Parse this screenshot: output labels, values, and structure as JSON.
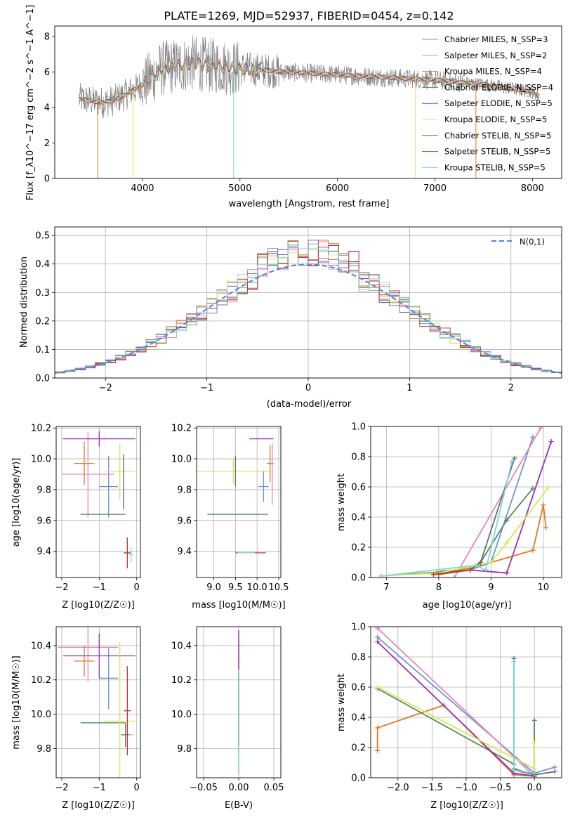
{
  "colors": [
    "#6f93d8",
    "#e884b6",
    "#e07a22",
    "#5a8a5c",
    "#9a30b8",
    "#d4e85a",
    "#6a6a6a",
    "#c4302b",
    "#7ed8d8"
  ],
  "chart_data": [
    {
      "id": "spectrum",
      "type": "line",
      "title": "PLATE=1269, MJD=52937, FIBERID=0454, z=0.142",
      "xlabel": "wavelength [Angstrom, rest frame]",
      "ylabel": "Flux [f_λ10^−17 erg cm^−2 s^−1 A^−1]",
      "xlim": [
        3100,
        8300
      ],
      "ylim": [
        0,
        8.6
      ],
      "xticks": [
        4000,
        5000,
        6000,
        7000,
        8000
      ],
      "yticks": [
        0,
        2,
        4,
        6,
        8
      ],
      "legend_position": "upper-right",
      "series": [
        {
          "name": "Chabrier MILES, N_SSP=3"
        },
        {
          "name": "Salpeter MILES, N_SSP=2"
        },
        {
          "name": "Kroupa MILES, N_SSP=4"
        },
        {
          "name": "Chabrier ELODIE, N_SSP=4"
        },
        {
          "name": "Salpeter ELODIE, N_SSP=5"
        },
        {
          "name": "Kroupa ELODIE, N_SSP=5"
        },
        {
          "name": "Chabrier STELIB, N_SSP=5"
        },
        {
          "name": "Salpeter STELIB, N_SSP=5"
        },
        {
          "name": "Kroupa STELIB, N_SSP=5"
        }
      ],
      "continuum": [
        [
          3350,
          4.5
        ],
        [
          3500,
          4.35
        ],
        [
          3600,
          4.3
        ],
        [
          3700,
          4.4
        ],
        [
          3850,
          4.8
        ],
        [
          4000,
          5.3
        ],
        [
          4200,
          6.2
        ],
        [
          4500,
          6.5
        ],
        [
          5000,
          6.2
        ],
        [
          5500,
          6.0
        ],
        [
          6000,
          5.85
        ],
        [
          6500,
          5.7
        ],
        [
          7000,
          5.55
        ],
        [
          7500,
          5.3
        ],
        [
          8000,
          4.9
        ],
        [
          8070,
          4.6
        ]
      ]
    },
    {
      "id": "residuals",
      "type": "histogram",
      "xlabel": "(data-model)/error",
      "ylabel": "Normed distribution",
      "xlim": [
        -2.5,
        2.5
      ],
      "ylim": [
        0,
        0.53
      ],
      "xticks": [
        -2,
        -1,
        0,
        1,
        2
      ],
      "yticks": [
        0.0,
        0.1,
        0.2,
        0.3,
        0.4,
        0.5
      ],
      "legend_label": "N(0,1)",
      "bin_width": 0.1
    },
    {
      "id": "age-vs-Z",
      "type": "scatter",
      "xlabel": "Z [log10(Z/Z☉)]",
      "ylabel": "age  [log10(age/yr)]",
      "xlim": [
        -2.15,
        0.1
      ],
      "ylim": [
        9.23,
        10.21
      ],
      "xticks": [
        -2,
        -1,
        0
      ],
      "yticks": [
        9.4,
        9.6,
        9.8,
        10.0,
        10.2
      ],
      "points": [
        {
          "x": -0.75,
          "y": 9.82,
          "xerr": 0.25,
          "yerr": 0.2
        },
        {
          "x": -1.3,
          "y": 9.9,
          "xerr": 0.7,
          "yerr": 0.28
        },
        {
          "x": -1.4,
          "y": 9.97,
          "xerr": 0.27,
          "yerr": 0.14
        },
        {
          "x": -0.9,
          "y": 9.64,
          "xerr": 0.6,
          "yerr": 0.0
        },
        {
          "x": -1.0,
          "y": 10.13,
          "xerr": 0.97,
          "yerr": 0.05
        },
        {
          "x": -0.45,
          "y": 9.92,
          "xerr": 0.4,
          "yerr": 0.18
        },
        {
          "x": -0.35,
          "y": 9.85,
          "xerr": 0.0,
          "yerr": 0.18
        },
        {
          "x": -0.25,
          "y": 9.39,
          "xerr": 0.1,
          "yerr": 0.1
        },
        {
          "x": -0.15,
          "y": 9.38,
          "xerr": 0.06,
          "yerr": 0.05
        }
      ]
    },
    {
      "id": "age-vs-mass",
      "type": "scatter",
      "xlabel": "mass [log10(M/M☉)]",
      "ylabel": "",
      "xlim": [
        8.6,
        10.55
      ],
      "ylim": [
        9.23,
        10.21
      ],
      "xticks": [
        9.0,
        9.5,
        10.0,
        10.5
      ],
      "yticks": [
        9.4,
        9.6,
        9.8,
        10.0,
        10.2
      ],
      "points": [
        {
          "x": 10.15,
          "y": 9.82,
          "xerr": 0.12,
          "yerr": 0.1
        },
        {
          "x": 10.35,
          "y": 9.9,
          "xerr": 0.0,
          "yerr": 0.2
        },
        {
          "x": 10.3,
          "y": 9.97,
          "xerr": 0.08,
          "yerr": 0.12
        },
        {
          "x": 9.55,
          "y": 9.64,
          "xerr": 0.7,
          "yerr": 0.0
        },
        {
          "x": 10.1,
          "y": 10.13,
          "xerr": 0.28,
          "yerr": 0.0
        },
        {
          "x": 9.45,
          "y": 9.92,
          "xerr": 0.95,
          "yerr": 0.08
        },
        {
          "x": 9.5,
          "y": 9.92,
          "xerr": 0.0,
          "yerr": 0.1
        },
        {
          "x": 9.85,
          "y": 9.39,
          "xerr": 0.35,
          "yerr": 0.0
        },
        {
          "x": 9.75,
          "y": 9.39,
          "xerr": 0.2,
          "yerr": 0.0
        }
      ]
    },
    {
      "id": "mw-vs-age",
      "type": "line",
      "xlabel": "age  [log10(age/yr)]",
      "ylabel": "mass weight",
      "xlim": [
        6.7,
        10.35
      ],
      "ylim": [
        0,
        1.0
      ],
      "xticks": [
        7,
        8,
        9,
        10
      ],
      "yticks": [
        0.0,
        0.2,
        0.4,
        0.6,
        0.8,
        1.0
      ],
      "series": [
        {
          "x": [
            8.6,
            9.0,
            9.8
          ],
          "y": [
            0.05,
            0.1,
            0.93
          ]
        },
        {
          "x": 8.3,
          "y": 0.0,
          "x2": 9.95,
          "y2": 0.99
        },
        {
          "x": [
            8.0,
            8.6,
            9.8,
            10.0,
            10.05
          ],
          "y": [
            0.04,
            0.06,
            0.18,
            0.48,
            0.33
          ]
        },
        {
          "x": [
            6.9,
            8.6,
            8.8,
            9.3,
            9.8
          ],
          "y": [
            0.01,
            0.05,
            0.1,
            0.38,
            0.59
          ]
        },
        {
          "x": [
            8.6,
            9.3,
            10.15
          ],
          "y": [
            0.05,
            0.03,
            0.9
          ]
        },
        {
          "x": [
            6.9,
            8.0,
            9.0,
            9.3,
            10.1
          ],
          "y": [
            0.01,
            0.03,
            0.1,
            0.23,
            0.6
          ]
        },
        {
          "x": [
            8.0,
            8.6,
            8.8,
            9.45
          ],
          "y": [
            0.02,
            0.05,
            0.1,
            0.79
          ]
        },
        {
          "x": [
            7.9,
            8.6
          ],
          "y": [
            0.02,
            0.05
          ]
        },
        {
          "x": [
            6.9,
            8.7,
            8.9,
            9.4
          ],
          "y": [
            0.01,
            0.08,
            0.05,
            0.77
          ]
        }
      ]
    },
    {
      "id": "mass-vs-Z",
      "type": "scatter",
      "xlabel": "Z [log10(Z/Z☉)]",
      "ylabel": "mass [log10(M/M☉)]",
      "xlim": [
        -2.15,
        0.1
      ],
      "ylim": [
        9.63,
        10.51
      ],
      "xticks": [
        -2,
        -1,
        0
      ],
      "yticks": [
        9.8,
        10.0,
        10.2,
        10.4
      ],
      "points": [
        {
          "x": -0.75,
          "y": 10.21,
          "xerr": 0.25,
          "yerr": 0.18
        },
        {
          "x": -1.3,
          "y": 10.39,
          "xerr": 0.8,
          "yerr": 0.2
        },
        {
          "x": -1.4,
          "y": 10.31,
          "xerr": 0.27,
          "yerr": 0.09
        },
        {
          "x": -0.9,
          "y": 9.95,
          "xerr": 0.6,
          "yerr": 0.0
        },
        {
          "x": -1.0,
          "y": 10.34,
          "xerr": 0.97,
          "yerr": 0.13
        },
        {
          "x": -0.45,
          "y": 9.96,
          "xerr": 0.4,
          "yerr": 0.46
        },
        {
          "x": -0.3,
          "y": 9.88,
          "xerr": 0.12,
          "yerr": 0.07
        },
        {
          "x": -0.25,
          "y": 10.02,
          "xerr": 0.1,
          "yerr": 0.26
        },
        {
          "x": -0.15,
          "y": 9.88,
          "xerr": 0.06,
          "yerr": 0.0
        }
      ]
    },
    {
      "id": "mass-vs-ebv",
      "type": "scatter",
      "xlabel": "E(B-V)",
      "ylabel": "",
      "xlim": [
        -0.06,
        0.06
      ],
      "ylim": [
        9.63,
        10.51
      ],
      "xticks": [
        -0.05,
        0.0,
        0.05
      ],
      "yticks": [
        9.8,
        10.0,
        10.2,
        10.4
      ],
      "points": [
        {
          "x": 0.0,
          "y": 10.2,
          "xerr": 0,
          "yerr": 0.25
        },
        {
          "x": 0.0,
          "y": 10.39,
          "xerr": 0,
          "yerr": 0.1
        },
        {
          "x": 0.0,
          "y": 10.31,
          "xerr": 0,
          "yerr": 0.1
        },
        {
          "x": 0.0,
          "y": 9.95,
          "xerr": 0,
          "yerr": 0.3
        },
        {
          "x": 0.0,
          "y": 10.34,
          "xerr": 0,
          "yerr": 0.15
        },
        {
          "x": 0.0,
          "y": 9.96,
          "xerr": 0,
          "yerr": 0.3
        },
        {
          "x": 0.0,
          "y": 9.88,
          "xerr": 0,
          "yerr": 0.07
        },
        {
          "x": 0.0,
          "y": 10.02,
          "xerr": 0,
          "yerr": 0.2
        },
        {
          "x": 0.0,
          "y": 9.95,
          "xerr": 0,
          "yerr": 0.3
        }
      ]
    },
    {
      "id": "mw-vs-Z",
      "type": "line",
      "xlabel": "Z [log10(Z/Z☉)]",
      "ylabel": "mass weight",
      "xlim": [
        -2.4,
        0.4
      ],
      "ylim": [
        0,
        1.0
      ],
      "xticks": [
        -2.0,
        -1.5,
        -1.0,
        -0.5,
        0.0
      ],
      "yticks": [
        0.0,
        0.2,
        0.4,
        0.6,
        0.8,
        1.0
      ],
      "series": [
        {
          "x": [
            -2.3,
            0.0,
            0.3
          ],
          "y": [
            0.93,
            0.03,
            0.07
          ]
        },
        {
          "x": [
            -2.3,
            0.0
          ],
          "y": [
            0.99,
            0.01
          ]
        },
        {
          "x": [
            -2.3,
            -2.3,
            -1.33,
            -0.3,
            0.0
          ],
          "y": [
            0.18,
            0.33,
            0.48,
            0.02,
            0.01
          ]
        },
        {
          "x": [
            -2.3,
            -0.3,
            -0.3,
            0.0,
            0.0
          ],
          "y": [
            0.59,
            0.09,
            0.05,
            0.02,
            0.38
          ]
        },
        {
          "x": [
            -2.3,
            -0.3,
            0.0
          ],
          "y": [
            0.9,
            0.03,
            0.01
          ]
        },
        {
          "x": [
            -2.3,
            0.0,
            0.0
          ],
          "y": [
            0.6,
            0.06,
            0.23
          ]
        },
        {
          "x": [
            -0.3,
            -0.3,
            0.0,
            0.3
          ],
          "y": [
            0.79,
            0.06,
            0.02,
            0.04
          ]
        },
        {
          "x": [
            -0.3,
            0.0
          ],
          "y": [
            0.05,
            0.03
          ]
        },
        {
          "x": [
            -0.3,
            -0.3,
            0.0
          ],
          "y": [
            0.77,
            0.05,
            0.03
          ]
        }
      ]
    }
  ]
}
